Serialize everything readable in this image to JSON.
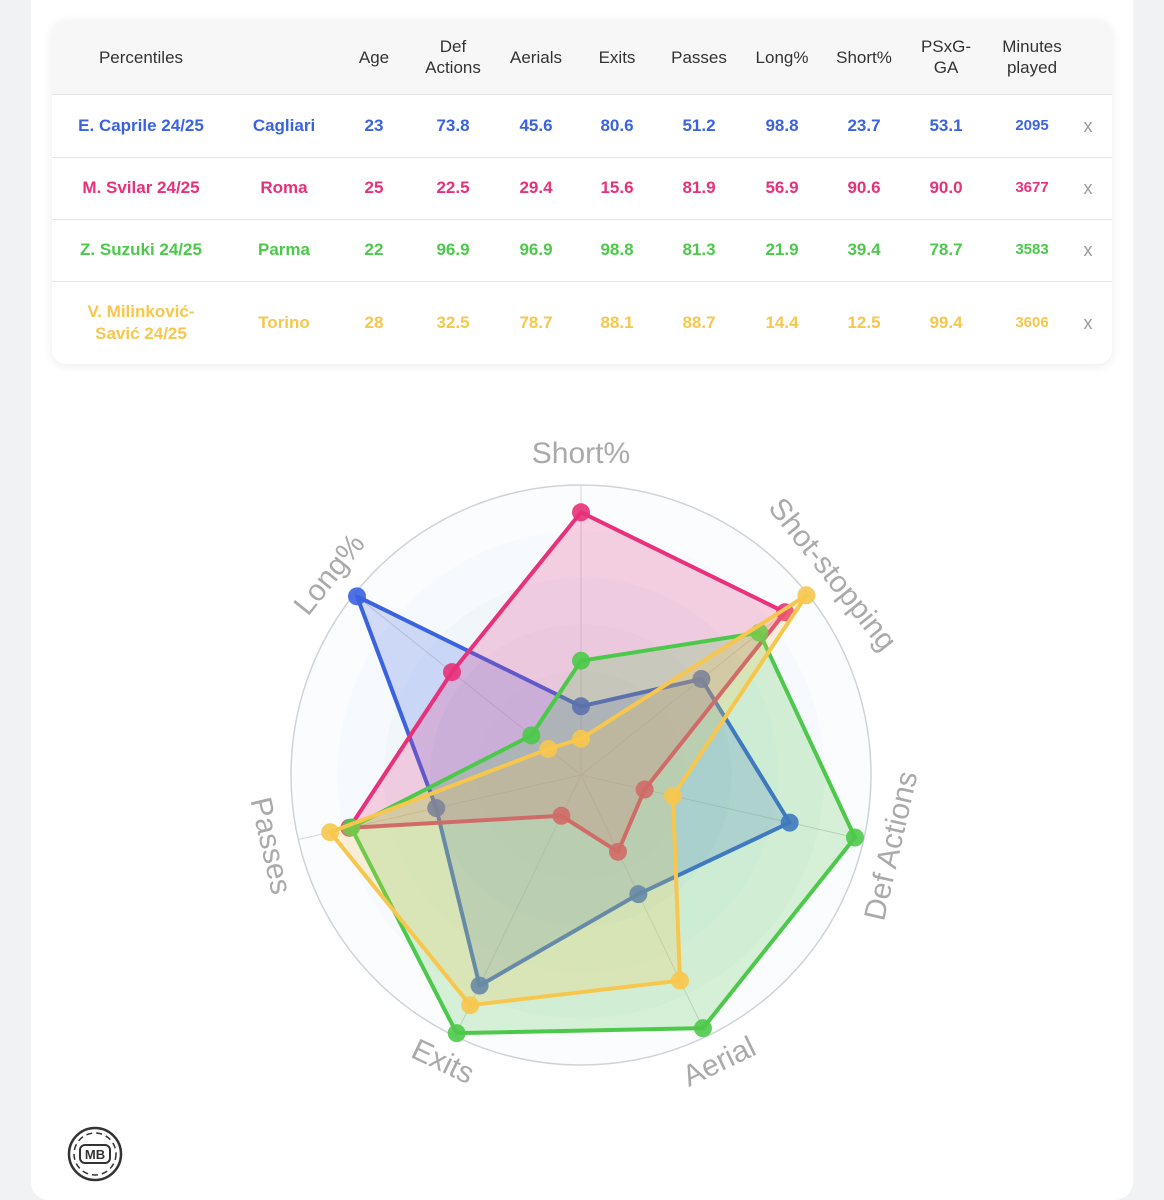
{
  "table": {
    "headers": [
      "Percentiles",
      "",
      "Age",
      "Def\nActions",
      "Aerials",
      "Exits",
      "Passes",
      "Long%",
      "Short%",
      "PSxG-\nGA",
      "Minutes\nplayed"
    ],
    "close_label": "x",
    "rows": [
      {
        "player": "E. Caprile 24/25",
        "team": "Cagliari",
        "age": "23",
        "def_actions": "73.8",
        "aerials": "45.6",
        "exits": "80.6",
        "passes": "51.2",
        "long": "98.8",
        "short": "23.7",
        "psxg": "53.1",
        "minutes": "2095",
        "color": "#3b63e0"
      },
      {
        "player": "M. Svilar 24/25",
        "team": "Roma",
        "age": "25",
        "def_actions": "22.5",
        "aerials": "29.4",
        "exits": "15.6",
        "passes": "81.9",
        "long": "56.9",
        "short": "90.6",
        "psxg": "90.0",
        "minutes": "3677",
        "color": "#e8317a"
      },
      {
        "player": "Z. Suzuki 24/25",
        "team": "Parma",
        "age": "22",
        "def_actions": "96.9",
        "aerials": "96.9",
        "exits": "98.8",
        "passes": "81.3",
        "long": "21.9",
        "short": "39.4",
        "psxg": "78.7",
        "minutes": "3583",
        "color": "#4cc94a"
      },
      {
        "player": "V. Milinković-\nSavić 24/25",
        "team": "Torino",
        "age": "28",
        "def_actions": "32.5",
        "aerials": "78.7",
        "exits": "88.1",
        "passes": "88.7",
        "long": "14.4",
        "short": "12.5",
        "psxg": "99.4",
        "minutes": "3606",
        "color": "#f7c74d"
      }
    ]
  },
  "chart_data": {
    "type": "radar",
    "axes": [
      "Short%",
      "Shot-stopping",
      "Def Actions",
      "Aerial",
      "Exits",
      "Passes",
      "Long%"
    ],
    "range": [
      0,
      100
    ],
    "series": [
      {
        "name": "E. Caprile 24/25",
        "color": "#3b63e0",
        "values": [
          23.7,
          53.1,
          73.8,
          45.6,
          80.6,
          51.2,
          98.8
        ]
      },
      {
        "name": "M. Svilar 24/25",
        "color": "#e8317a",
        "values": [
          90.6,
          90.0,
          22.5,
          29.4,
          15.6,
          81.9,
          56.9
        ]
      },
      {
        "name": "Z. Suzuki 24/25",
        "color": "#4cc94a",
        "values": [
          39.4,
          78.7,
          96.9,
          96.9,
          98.8,
          81.3,
          21.9
        ]
      },
      {
        "name": "V. Milinković-Savić 24/25",
        "color": "#f7c74d",
        "values": [
          12.5,
          99.4,
          32.5,
          78.7,
          88.1,
          88.7,
          14.4
        ]
      }
    ]
  },
  "logo": {
    "text": "MB"
  }
}
